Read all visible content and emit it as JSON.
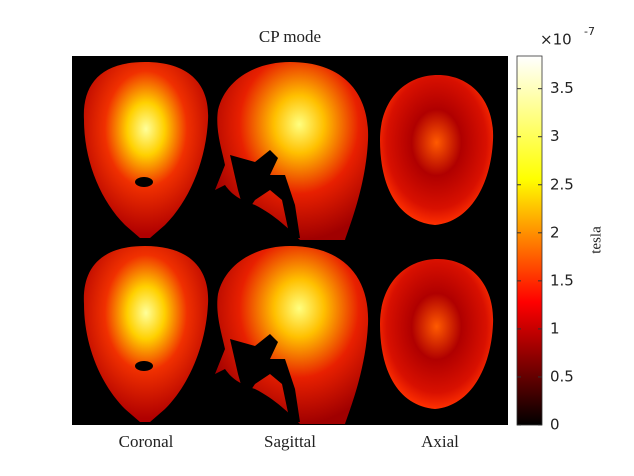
{
  "chart_data": {
    "type": "image",
    "title": "CP mode",
    "categories": [
      "Coronal",
      "Sagittal",
      "Axial"
    ],
    "colorbar": {
      "label": "tesla",
      "colormap": "hot",
      "ylim": [
        0,
        3.84
      ],
      "yticks": [
        0,
        0.5,
        1,
        1.5,
        2,
        2.5,
        3,
        3.5
      ],
      "multiplier": "×10",
      "exponent": "-7"
    }
  }
}
